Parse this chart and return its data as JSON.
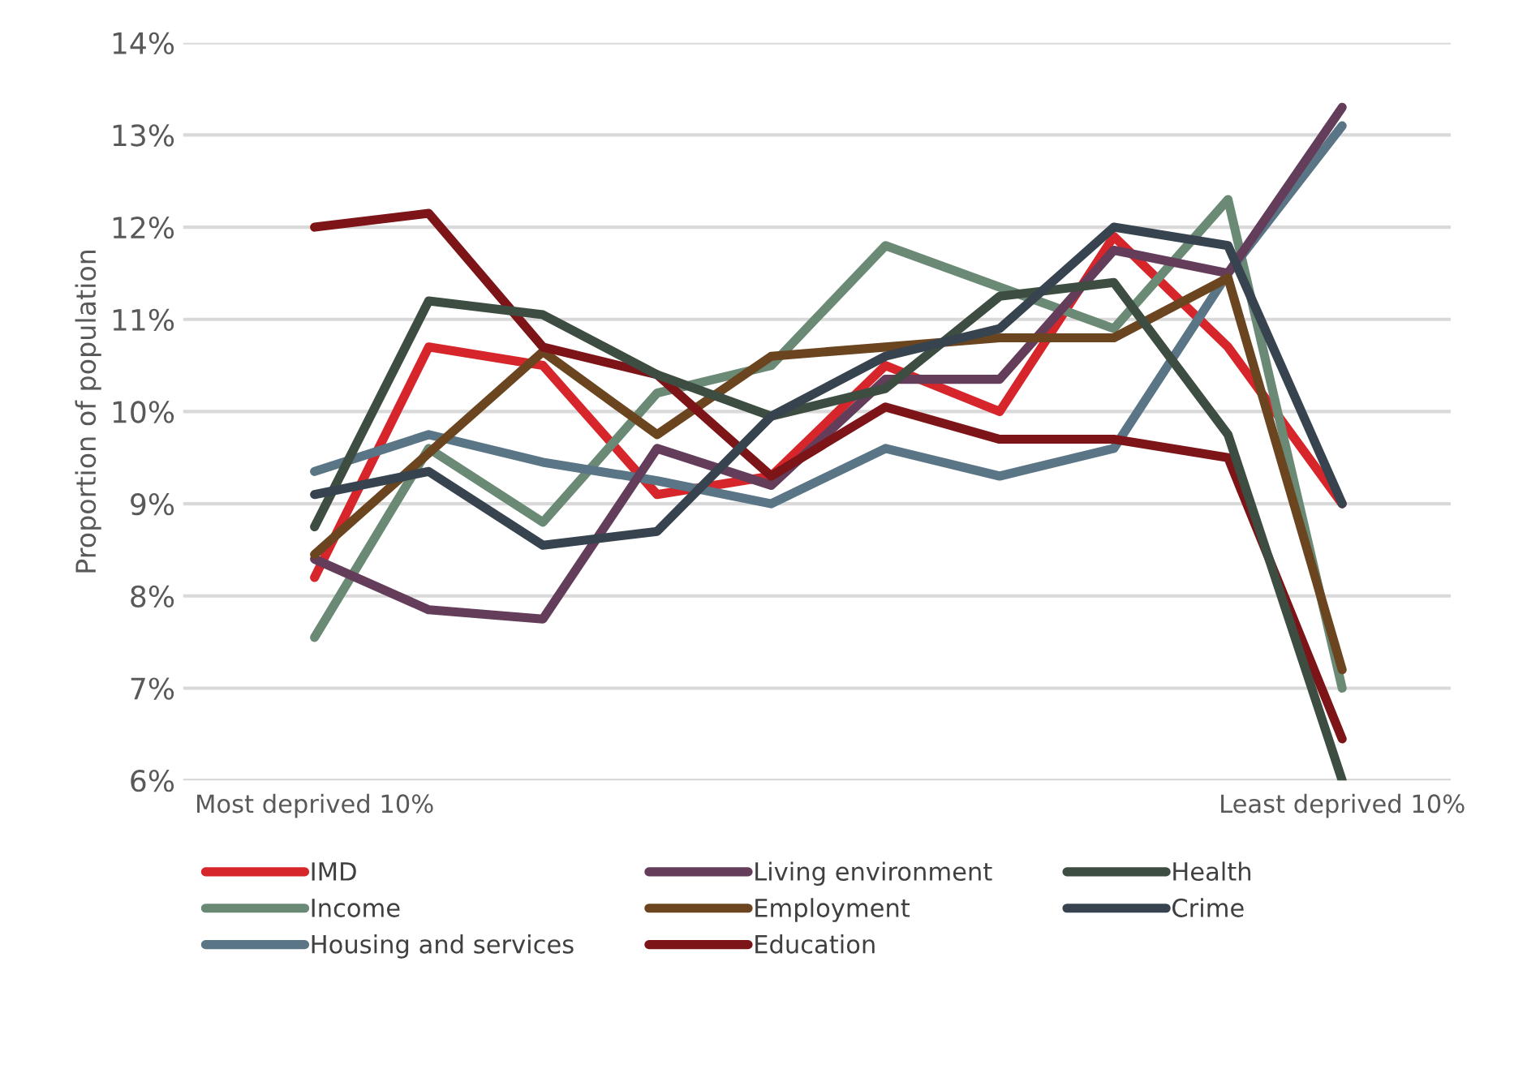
{
  "chart_data": {
    "type": "line",
    "ylabel": "Proportion of population",
    "categories": [
      "Most deprived 10%",
      null,
      null,
      null,
      null,
      null,
      null,
      null,
      null,
      "Least deprived 10%"
    ],
    "series": [
      {
        "name": "IMD",
        "color": "#d7262b",
        "values": [
          8.2,
          10.7,
          10.5,
          9.1,
          9.3,
          10.5,
          10.0,
          11.9,
          10.7,
          9.0
        ]
      },
      {
        "name": "Income",
        "color": "#6b8a75",
        "values": [
          7.55,
          9.6,
          8.8,
          10.2,
          10.5,
          11.8,
          11.35,
          10.9,
          12.3,
          7.0
        ]
      },
      {
        "name": "Housing and services",
        "color": "#5a7585",
        "values": [
          9.35,
          9.75,
          9.45,
          9.25,
          9.0,
          9.6,
          9.3,
          9.6,
          11.5,
          13.1
        ]
      },
      {
        "name": "Living environment",
        "color": "#633d5a",
        "values": [
          8.4,
          7.85,
          7.75,
          9.6,
          9.2,
          10.35,
          10.35,
          11.75,
          11.5,
          13.3
        ]
      },
      {
        "name": "Employment",
        "color": "#6b4520",
        "values": [
          8.45,
          9.55,
          10.65,
          9.75,
          10.6,
          10.7,
          10.8,
          10.8,
          11.45,
          7.2
        ]
      },
      {
        "name": "Education",
        "color": "#7d1418",
        "values": [
          12.0,
          12.15,
          10.7,
          10.4,
          9.3,
          10.05,
          9.7,
          9.7,
          9.5,
          6.45
        ]
      },
      {
        "name": "Health",
        "color": "#3e4d42",
        "values": [
          8.75,
          11.2,
          11.05,
          10.4,
          9.95,
          10.25,
          11.25,
          11.4,
          9.75,
          6.0
        ]
      },
      {
        "name": "Crime",
        "color": "#37444f",
        "values": [
          9.1,
          9.35,
          8.55,
          8.7,
          9.95,
          10.6,
          10.9,
          12.0,
          11.8,
          9.0
        ]
      }
    ],
    "ylim": [
      6,
      14
    ],
    "yticks": [
      {
        "value": 6,
        "label": "6%"
      },
      {
        "value": 7,
        "label": "7%"
      },
      {
        "value": 8,
        "label": "8%"
      },
      {
        "value": 9,
        "label": "9%"
      },
      {
        "value": 10,
        "label": "10%"
      },
      {
        "value": 11,
        "label": "11%"
      },
      {
        "value": 12,
        "label": "12%"
      },
      {
        "value": 13,
        "label": "13%"
      },
      {
        "value": 14,
        "label": "14%"
      }
    ],
    "grid": "y",
    "legend": "bottom",
    "marker": "none",
    "line_style": "solid"
  }
}
